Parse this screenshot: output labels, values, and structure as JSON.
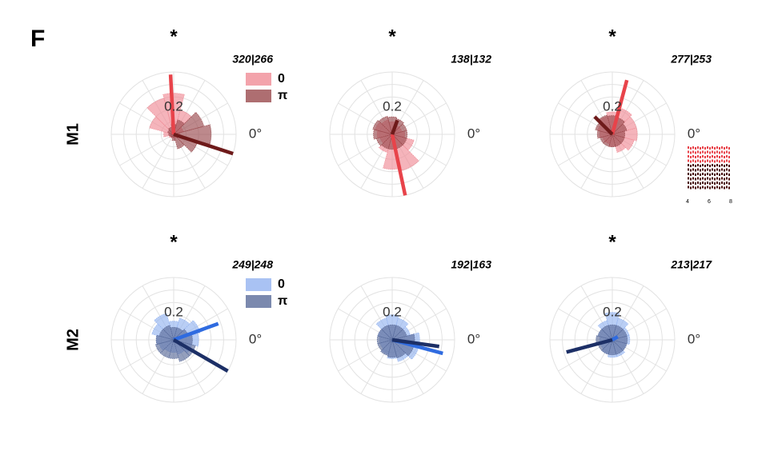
{
  "panel_label": "F",
  "row_labels": [
    "M1",
    "M2"
  ],
  "chart_data": [
    {
      "type": "rose",
      "title": "*",
      "annotation": "320|266",
      "legend": true,
      "rlim": [
        0,
        0.5
      ],
      "rgrid": [
        0.1,
        0.2,
        0.3,
        0.4,
        0.5
      ],
      "rticks": [
        0.2
      ],
      "thetaticks": [
        {
          "value": 0,
          "label": "0°"
        }
      ],
      "theta": [
        0,
        30,
        60,
        90,
        120,
        150,
        180,
        210,
        240,
        270,
        300,
        330
      ],
      "series": [
        {
          "name": "0",
          "color": "#f08c96",
          "line_color": "#e8434a",
          "values": [
            0.05,
            0.08,
            0.2,
            0.33,
            0.3,
            0.2,
            0.08,
            0.04,
            0.03,
            0.03,
            0.03,
            0.04
          ],
          "mean_angle": 93,
          "mean_length": 0.48
        },
        {
          "name": "π",
          "color": "#9a4a4e",
          "line_color": "#6e1a1a",
          "values": [
            0.3,
            0.25,
            0.12,
            0.08,
            0.06,
            0.05,
            0.04,
            0.03,
            0.03,
            0.05,
            0.12,
            0.2
          ],
          "mean_angle": 342,
          "mean_length": 0.5
        }
      ]
    },
    {
      "type": "rose",
      "title": "*",
      "annotation": "138|132",
      "legend": false,
      "rlim": [
        0,
        0.5
      ],
      "rgrid": [
        0.1,
        0.2,
        0.3,
        0.4,
        0.5
      ],
      "rticks": [
        0.2
      ],
      "thetaticks": [
        {
          "value": 0,
          "label": "0°"
        }
      ],
      "theta": [
        0,
        30,
        60,
        90,
        120,
        150,
        180,
        210,
        240,
        270,
        300,
        330
      ],
      "series": [
        {
          "name": "0",
          "color": "#f08c96",
          "line_color": "#e8434a",
          "values": [
            0.1,
            0.08,
            0.08,
            0.1,
            0.12,
            0.14,
            0.12,
            0.1,
            0.15,
            0.28,
            0.3,
            0.18
          ],
          "mean_angle": 282,
          "mean_length": 0.5
        },
        {
          "name": "π",
          "color": "#9a4a4e",
          "line_color": "#6e1a1a",
          "values": [
            0.12,
            0.12,
            0.13,
            0.14,
            0.15,
            0.16,
            0.15,
            0.13,
            0.12,
            0.12,
            0.12,
            0.12
          ],
          "mean_angle": 70,
          "mean_length": 0.12
        }
      ]
    },
    {
      "type": "rose",
      "title": "*",
      "annotation": "277|253",
      "legend": false,
      "rlim": [
        0,
        0.5
      ],
      "rgrid": [
        0.1,
        0.2,
        0.3,
        0.4,
        0.5
      ],
      "rticks": [
        0.2
      ],
      "thetaticks": [
        {
          "value": 0,
          "label": "0°"
        }
      ],
      "theta": [
        0,
        30,
        60,
        90,
        120,
        150,
        180,
        210,
        240,
        270,
        300,
        330
      ],
      "series": [
        {
          "name": "0",
          "color": "#f08c96",
          "line_color": "#e8434a",
          "values": [
            0.2,
            0.2,
            0.22,
            0.18,
            0.15,
            0.12,
            0.1,
            0.08,
            0.08,
            0.1,
            0.15,
            0.18
          ],
          "mean_angle": 75,
          "mean_length": 0.45
        },
        {
          "name": "π",
          "color": "#9a4a4e",
          "line_color": "#6e1a1a",
          "values": [
            0.1,
            0.12,
            0.14,
            0.15,
            0.16,
            0.14,
            0.12,
            0.1,
            0.1,
            0.1,
            0.1,
            0.1
          ],
          "mean_angle": 135,
          "mean_length": 0.2
        }
      ],
      "inset_xticks": [
        4,
        6,
        8
      ]
    },
    {
      "type": "rose",
      "title": "*",
      "annotation": "249|248",
      "legend": true,
      "rlim": [
        0,
        0.5
      ],
      "rgrid": [
        0.1,
        0.2,
        0.3,
        0.4,
        0.5
      ],
      "rticks": [
        0.2
      ],
      "thetaticks": [
        {
          "value": 0,
          "label": "0°"
        }
      ],
      "theta": [
        0,
        30,
        60,
        90,
        120,
        150,
        180,
        210,
        240,
        270,
        300,
        330
      ],
      "series": [
        {
          "name": "0",
          "color": "#94b3f0",
          "line_color": "#2f6be0",
          "values": [
            0.2,
            0.22,
            0.18,
            0.15,
            0.22,
            0.18,
            0.14,
            0.12,
            0.1,
            0.1,
            0.12,
            0.15
          ],
          "mean_angle": 20,
          "mean_length": 0.38
        },
        {
          "name": "π",
          "color": "#5a6b9a",
          "line_color": "#1c2f66",
          "values": [
            0.15,
            0.12,
            0.1,
            0.1,
            0.12,
            0.12,
            0.14,
            0.15,
            0.15,
            0.15,
            0.18,
            0.18
          ],
          "mean_angle": 330,
          "mean_length": 0.5
        }
      ]
    },
    {
      "type": "rose",
      "annotation": "192|163",
      "legend": false,
      "rlim": [
        0,
        0.5
      ],
      "rgrid": [
        0.1,
        0.2,
        0.3,
        0.4,
        0.5
      ],
      "rticks": [
        0.2
      ],
      "thetaticks": [
        {
          "value": 0,
          "label": "0°"
        }
      ],
      "theta": [
        0,
        30,
        60,
        90,
        120,
        150,
        180,
        210,
        240,
        270,
        300,
        330
      ],
      "series": [
        {
          "name": "0",
          "color": "#94b3f0",
          "line_color": "#2f6be0",
          "values": [
            0.22,
            0.15,
            0.18,
            0.2,
            0.18,
            0.12,
            0.1,
            0.1,
            0.12,
            0.15,
            0.18,
            0.22
          ],
          "mean_angle": 345,
          "mean_length": 0.42
        },
        {
          "name": "π",
          "color": "#5a6b9a",
          "line_color": "#1c2f66",
          "values": [
            0.18,
            0.12,
            0.12,
            0.12,
            0.12,
            0.12,
            0.12,
            0.12,
            0.13,
            0.14,
            0.15,
            0.18
          ],
          "mean_angle": 352,
          "mean_length": 0.38
        }
      ]
    },
    {
      "type": "rose",
      "title": "*",
      "annotation": "213|217",
      "legend": false,
      "rlim": [
        0,
        0.5
      ],
      "rgrid": [
        0.1,
        0.2,
        0.3,
        0.4,
        0.5
      ],
      "rticks": [
        0.2
      ],
      "thetaticks": [
        {
          "value": 0,
          "label": "0°"
        }
      ],
      "theta": [
        0,
        30,
        60,
        90,
        120,
        150,
        180,
        210,
        240,
        270,
        300,
        330
      ],
      "series": [
        {
          "name": "0",
          "color": "#94b3f0",
          "line_color": "#2f6be0",
          "values": [
            0.14,
            0.14,
            0.18,
            0.22,
            0.16,
            0.12,
            0.1,
            0.1,
            0.12,
            0.14,
            0.14,
            0.12
          ],
          "mean_angle": 30,
          "mean_length": 0.05
        },
        {
          "name": "π",
          "color": "#5a6b9a",
          "line_color": "#1c2f66",
          "values": [
            0.12,
            0.12,
            0.12,
            0.12,
            0.12,
            0.12,
            0.13,
            0.12,
            0.12,
            0.12,
            0.12,
            0.12
          ],
          "mean_angle": 195,
          "mean_length": 0.38
        }
      ]
    }
  ]
}
